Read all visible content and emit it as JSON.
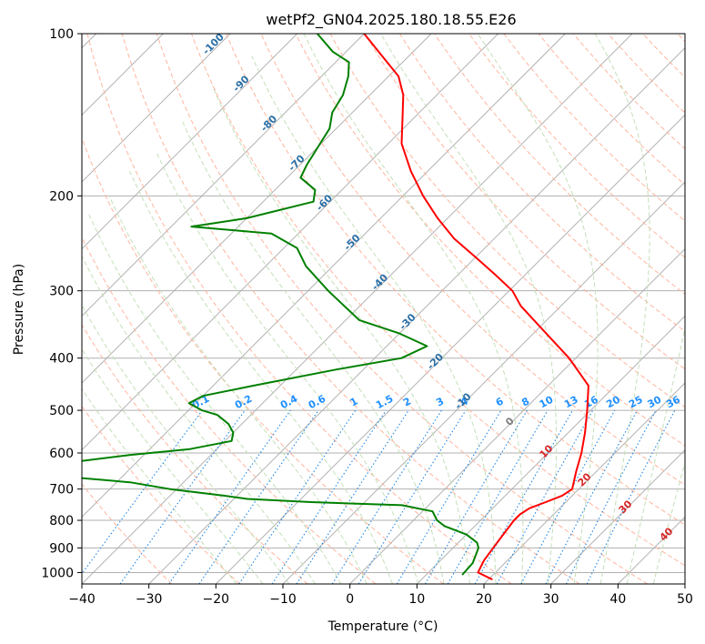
{
  "chart_data": {
    "type": "line",
    "title": "wetPf2_GN04.2025.180.18.55.E26",
    "xlabel": "Temperature (°C)",
    "ylabel": "Pressure (hPa)",
    "xlim": [
      -40,
      50
    ],
    "ylim": [
      1050,
      100
    ],
    "y_scale": "log",
    "skew_deg": 45,
    "grid": true,
    "x_ticks": [
      "−40",
      "−30",
      "−20",
      "−10",
      "0",
      "10",
      "20",
      "30",
      "40",
      "50"
    ],
    "x_tick_values": [
      -40,
      -30,
      -20,
      -10,
      0,
      10,
      20,
      30,
      40,
      50
    ],
    "y_ticks": [
      "100",
      "200",
      "300",
      "400",
      "500",
      "600",
      "700",
      "800",
      "900",
      "1000"
    ],
    "y_tick_values": [
      100,
      200,
      300,
      400,
      500,
      600,
      700,
      800,
      900,
      1000
    ],
    "series": [
      {
        "color": "#ff0000",
        "points": [
          [
            1030,
            20.6
          ],
          [
            1000,
            17.4
          ],
          [
            950,
            16.5
          ],
          [
            900,
            16.0
          ],
          [
            850,
            15.5
          ],
          [
            800,
            15.0
          ],
          [
            780,
            15.0
          ],
          [
            760,
            15.5
          ],
          [
            740,
            17.0
          ],
          [
            720,
            18.5
          ],
          [
            700,
            19.0
          ],
          [
            650,
            17.0
          ],
          [
            600,
            15.0
          ],
          [
            550,
            12.5
          ],
          [
            500,
            9.5
          ],
          [
            450,
            6.0
          ],
          [
            400,
            -1.0
          ],
          [
            350,
            -10.0
          ],
          [
            320,
            -16.0
          ],
          [
            300,
            -19.5
          ],
          [
            280,
            -24.5
          ],
          [
            260,
            -30.0
          ],
          [
            240,
            -36.0
          ],
          [
            220,
            -41.5
          ],
          [
            200,
            -47.0
          ],
          [
            180,
            -52.5
          ],
          [
            160,
            -58.0
          ],
          [
            140,
            -62.5
          ],
          [
            130,
            -65.0
          ],
          [
            120,
            -68.5
          ],
          [
            110,
            -74.0
          ],
          [
            100,
            -80.0
          ]
        ]
      },
      {
        "color": "#008000",
        "points": [
          [
            1010,
            15.4
          ],
          [
            960,
            15.2
          ],
          [
            900,
            13.8
          ],
          [
            880,
            12.8
          ],
          [
            850,
            10.0
          ],
          [
            820,
            5.5
          ],
          [
            800,
            3.5
          ],
          [
            770,
            1.5
          ],
          [
            750,
            -4.0
          ],
          [
            740,
            -18.0
          ],
          [
            730,
            -28.0
          ],
          [
            720,
            -32.0
          ],
          [
            700,
            -41.0
          ],
          [
            680,
            -48.0
          ],
          [
            660,
            -61.0
          ],
          [
            650,
            -67.0
          ],
          [
            640,
            -66.0
          ],
          [
            620,
            -58.0
          ],
          [
            605,
            -52.0
          ],
          [
            590,
            -44.0
          ],
          [
            570,
            -39.0
          ],
          [
            550,
            -40.0
          ],
          [
            530,
            -42.0
          ],
          [
            510,
            -45.0
          ],
          [
            500,
            -48.0
          ],
          [
            485,
            -51.0
          ],
          [
            470,
            -50.0
          ],
          [
            450,
            -44.0
          ],
          [
            420,
            -34.0
          ],
          [
            400,
            -26.0
          ],
          [
            380,
            -24.0
          ],
          [
            360,
            -30.0
          ],
          [
            340,
            -38.0
          ],
          [
            300,
            -47.0
          ],
          [
            270,
            -54.0
          ],
          [
            250,
            -58.0
          ],
          [
            235,
            -64.0
          ],
          [
            228,
            -77.0
          ],
          [
            220,
            -70.0
          ],
          [
            205,
            -62.5
          ],
          [
            195,
            -64.0
          ],
          [
            185,
            -68.0
          ],
          [
            175,
            -69.0
          ],
          [
            150,
            -71.0
          ],
          [
            140,
            -73.0
          ],
          [
            130,
            -74.0
          ],
          [
            120,
            -76.0
          ],
          [
            113,
            -78.0
          ],
          [
            108,
            -82.0
          ],
          [
            100,
            -87.0
          ]
        ]
      }
    ],
    "dry_adiabat_labels": [
      "-100",
      "-90",
      "-80",
      "-70",
      "-60",
      "-50",
      "-40",
      "-30",
      "-20",
      "-10"
    ],
    "mixing_ratio_labels": [
      "0.1",
      "0.2",
      "0.4",
      "0.6",
      "1",
      "1.5",
      "2",
      "3",
      "4",
      "6",
      "8",
      "10",
      "13",
      "16",
      "20",
      "25",
      "30",
      "36"
    ],
    "moist_adiabat_labels": [
      "0",
      "10",
      "20",
      "30",
      "40"
    ],
    "colors": {
      "background": "#ffffff",
      "isobar": "#b0b0b0",
      "isotherm": "#aaaaaa",
      "dry_adiabat": "#ffb59e",
      "moist_adiabat": "#c4dfb8",
      "mixing_ratio": "#1f86e4",
      "dry_adiabat_label": "#2a6fa6",
      "mixing_ratio_label": "#1e8fff",
      "moist_adiabat_label": "#d62728",
      "moist_zero_label": "#808080",
      "theta_e_curve": "#e2c7ab"
    }
  }
}
